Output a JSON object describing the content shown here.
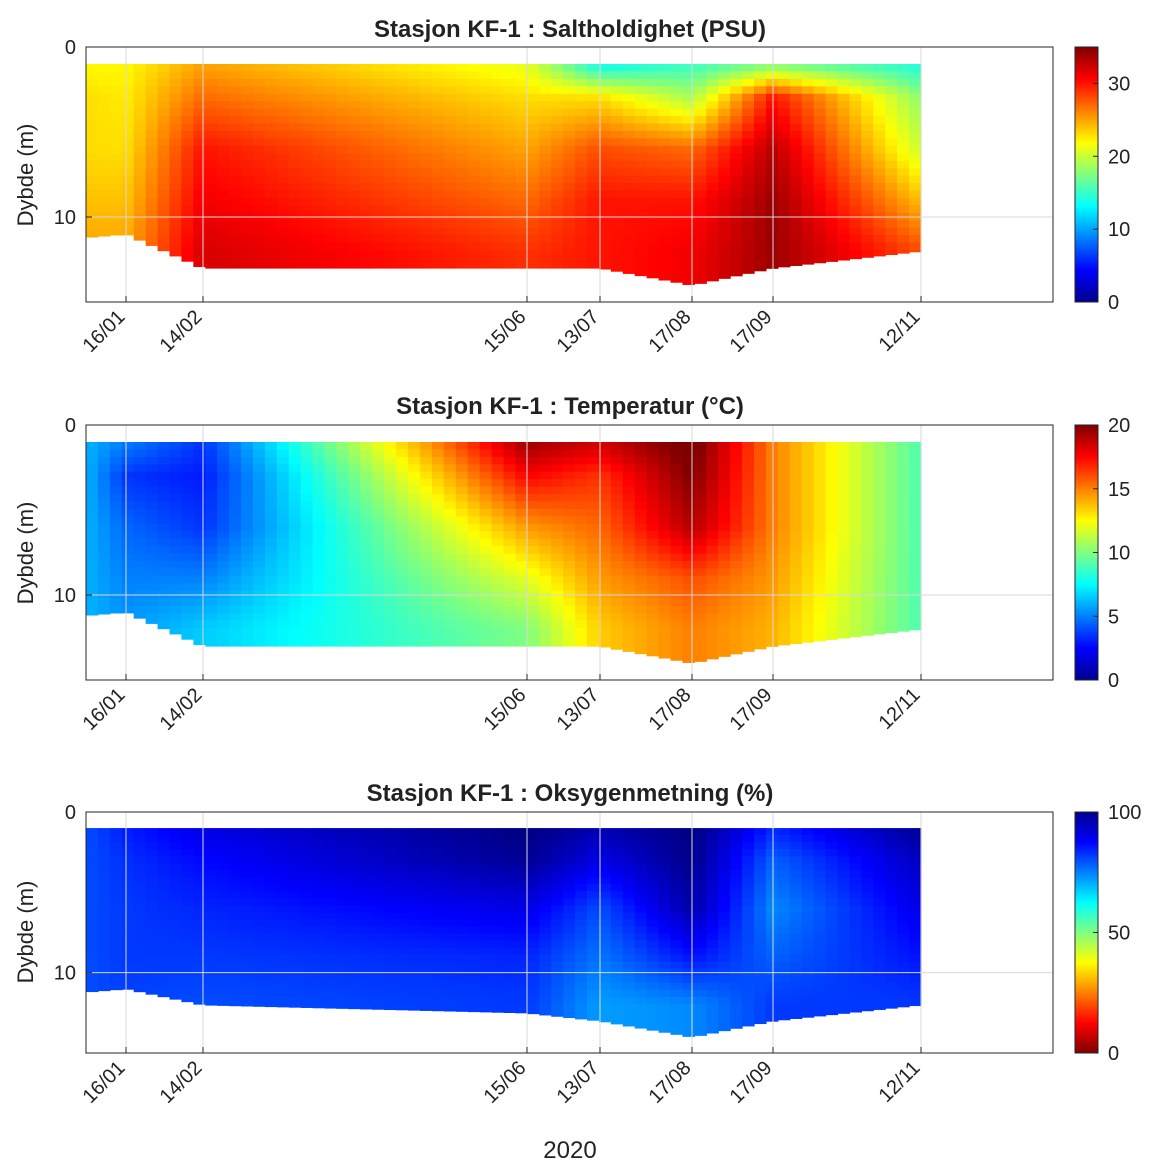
{
  "figure": {
    "year_label": "2020"
  },
  "chart_data": [
    {
      "type": "heatmap",
      "title": "Stasjon KF-1 :  Saltholdighet (PSU)",
      "ylabel": "Dybde (m)",
      "colormap": "jet",
      "y_reversed": true,
      "y_ticks": [
        0,
        10
      ],
      "colorbar_ticks": [
        0,
        10,
        20,
        30
      ],
      "colorbar_range": [
        0,
        35
      ],
      "x_ticks": [
        "16/01",
        "14/02",
        "15/06",
        "13/07",
        "17/08",
        "17/09",
        "12/11"
      ],
      "max_depth": [
        11.2,
        11.0,
        13.0,
        13.0,
        13.0,
        14.0,
        13.0,
        12.0
      ],
      "depths": [
        1,
        3,
        6,
        9,
        12
      ],
      "values": [
        [
          22,
          23,
          23,
          24,
          25
        ],
        [
          22,
          22.5,
          23,
          24,
          25
        ],
        [
          25,
          27,
          30,
          31,
          32
        ],
        [
          21,
          23,
          25,
          27,
          29
        ],
        [
          13,
          23,
          28,
          30,
          30
        ],
        [
          15,
          19,
          27,
          30,
          31
        ],
        [
          17,
          30,
          33,
          34,
          34
        ],
        [
          14,
          18,
          20,
          24,
          28
        ]
      ]
    },
    {
      "type": "heatmap",
      "title": "Stasjon KF-1 :  Temperatur (°C)",
      "ylabel": "Dybde (m)",
      "colormap": "jet",
      "y_reversed": true,
      "y_ticks": [
        0,
        10
      ],
      "colorbar_ticks": [
        0,
        5,
        10,
        15,
        20
      ],
      "colorbar_range": [
        0,
        20
      ],
      "x_ticks": [
        "16/01",
        "14/02",
        "15/06",
        "13/07",
        "17/08",
        "17/09",
        "12/11"
      ],
      "max_depth": [
        11.2,
        11.0,
        13.0,
        13.0,
        13.0,
        14.0,
        13.0,
        12.0
      ],
      "depths": [
        1,
        3,
        6,
        9,
        12
      ],
      "values": [
        [
          6.0,
          6.0,
          6.0,
          6.0,
          6.0
        ],
        [
          5.0,
          3.5,
          4.5,
          5.0,
          5.5
        ],
        [
          3.5,
          3.0,
          3.5,
          5.0,
          6.5
        ],
        [
          19.5,
          17.5,
          14.5,
          12.0,
          10.0
        ],
        [
          18.5,
          16.5,
          15.5,
          14.5,
          13.5
        ],
        [
          20.5,
          20.0,
          19.0,
          16.0,
          15.0
        ],
        [
          15.0,
          15.0,
          15.0,
          14.5,
          14.0
        ],
        [
          9.0,
          9.0,
          9.0,
          9.0,
          9.0
        ]
      ]
    },
    {
      "type": "heatmap",
      "title": "Stasjon KF-1 :  Oksygenmetning (%)",
      "ylabel": "Dybde (m)",
      "colormap": "jet_reversed",
      "y_reversed": true,
      "y_ticks": [
        0,
        10
      ],
      "colorbar_ticks": [
        0,
        50,
        100
      ],
      "colorbar_range": [
        0,
        100
      ],
      "x_ticks": [
        "16/01",
        "14/02",
        "15/06",
        "13/07",
        "17/08",
        "17/09",
        "12/11"
      ],
      "max_depth": [
        11.2,
        11.0,
        12.0,
        12.5,
        13.0,
        14.0,
        13.0,
        12.0
      ],
      "depths": [
        1,
        3,
        6,
        9,
        12
      ],
      "values": [
        [
          80,
          80,
          80,
          80,
          80
        ],
        [
          85,
          83,
          82,
          82,
          81
        ],
        [
          90,
          87,
          84,
          82,
          80
        ],
        [
          100,
          98,
          90,
          84,
          82
        ],
        [
          95,
          90,
          80,
          76,
          72
        ],
        [
          100,
          99,
          96,
          86,
          74
        ],
        [
          84,
          78,
          74,
          78,
          82
        ],
        [
          98,
          94,
          90,
          86,
          82
        ]
      ]
    }
  ]
}
